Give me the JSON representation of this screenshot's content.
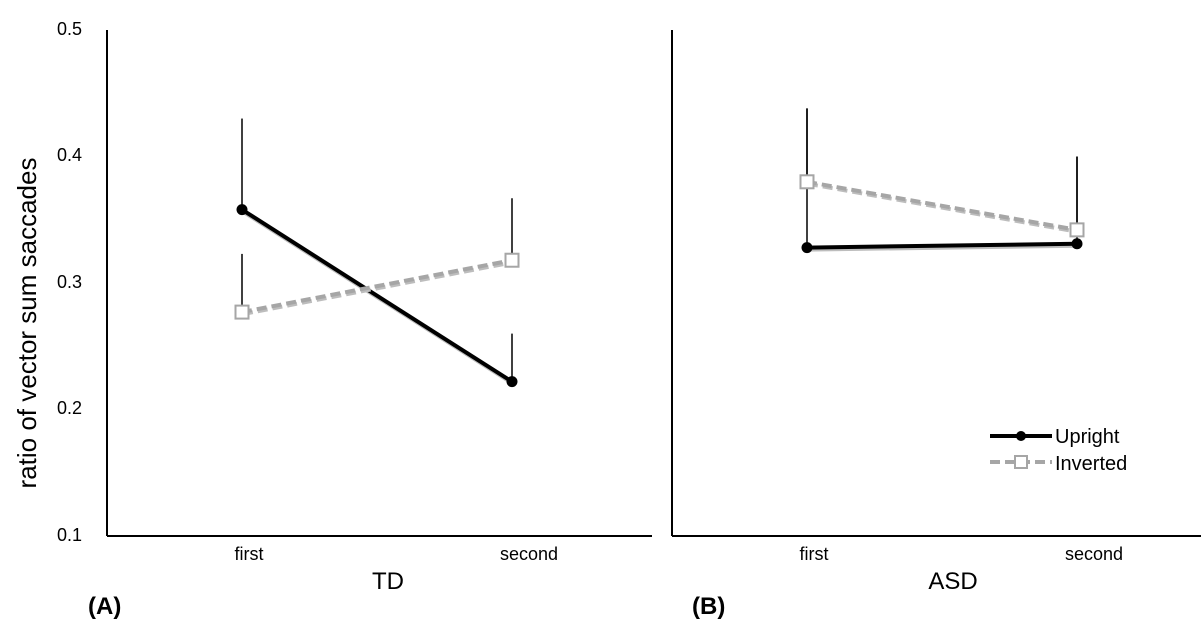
{
  "chart_data": {
    "type": "line",
    "ylabel": "ratio of vector sum saccades",
    "ylim": [
      0.1,
      0.5
    ],
    "yticks": [
      "0.1",
      "0.2",
      "0.3",
      "0.4",
      "0.5"
    ],
    "ytick_values": [
      0.1,
      0.2,
      0.3,
      0.4,
      0.5
    ],
    "categories": [
      "first",
      "second"
    ],
    "legend": {
      "placement": "bottom-right of panel B",
      "entries": [
        "Upright",
        "Inverted"
      ]
    },
    "colors": {
      "upright": "#000000",
      "inverted": "#a6a6a6"
    },
    "panels": [
      {
        "panel_label": "(A)",
        "xlabel": "TD",
        "series": [
          {
            "name": "Upright",
            "values": [
              0.358,
              0.222
            ],
            "error_upper": [
              0.43,
              0.26
            ]
          },
          {
            "name": "Inverted",
            "values": [
              0.277,
              0.318
            ],
            "error_upper": [
              0.323,
              0.367
            ]
          }
        ]
      },
      {
        "panel_label": "(B)",
        "xlabel": "ASD",
        "series": [
          {
            "name": "Upright",
            "values": [
              0.328,
              0.331
            ],
            "error_upper": [
              0.438,
              0.4
            ]
          },
          {
            "name": "Inverted",
            "values": [
              0.38,
              0.342
            ],
            "error_upper": [
              0.438,
              0.4
            ]
          }
        ]
      }
    ]
  }
}
